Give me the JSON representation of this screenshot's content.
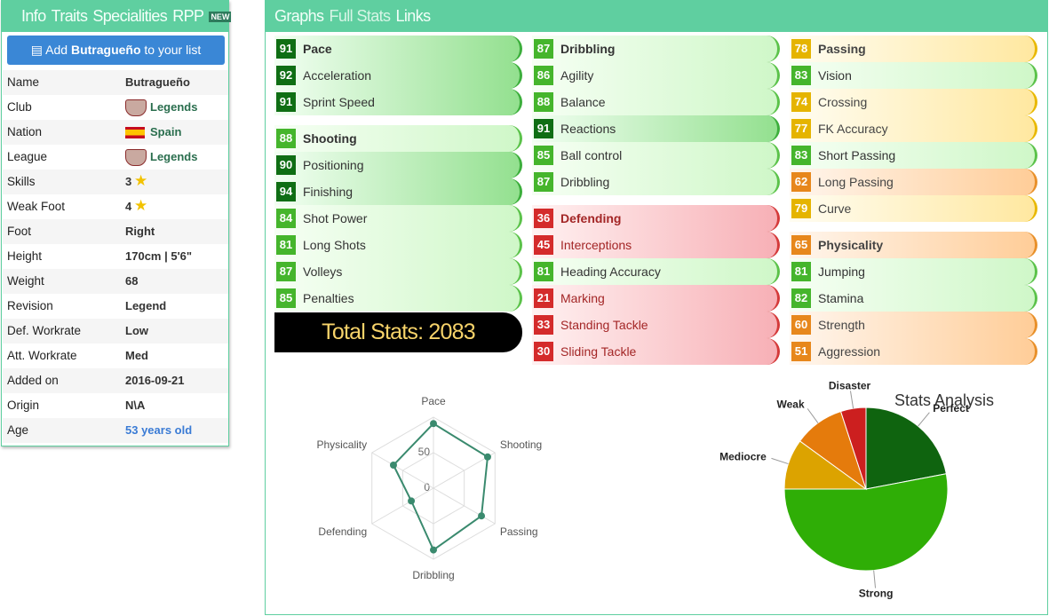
{
  "sidebar": {
    "tabs": [
      "Info",
      "Traits",
      "Specialities",
      "RPP"
    ],
    "badge": "NEW",
    "button": {
      "prefix": "Add ",
      "name": "Butragueño",
      "suffix": " to your list"
    },
    "rows": [
      [
        "Name",
        "Butragueño"
      ],
      [
        "Club",
        "Legends"
      ],
      [
        "Nation",
        "Spain"
      ],
      [
        "League",
        "Legends"
      ],
      [
        "Skills",
        "3"
      ],
      [
        "Weak Foot",
        "4"
      ],
      [
        "Foot",
        "Right"
      ],
      [
        "Height",
        "170cm | 5'6\""
      ],
      [
        "Weight",
        "68"
      ],
      [
        "Revision",
        "Legend"
      ],
      [
        "Def. Workrate",
        "Low"
      ],
      [
        "Att. Workrate",
        "Med"
      ],
      [
        "Added on",
        "2016-09-21"
      ],
      [
        "Origin",
        "N\\A"
      ],
      [
        "Age",
        "53 years old"
      ]
    ]
  },
  "main": {
    "tabs": [
      "Graphs",
      "Full Stats",
      "Links"
    ],
    "columns": [
      [
        {
          "name": "Pace",
          "rating": 91,
          "stats": [
            {
              "name": "Acceleration",
              "rating": 92
            },
            {
              "name": "Sprint Speed",
              "rating": 91
            }
          ]
        },
        {
          "name": "Shooting",
          "rating": 88,
          "stats": [
            {
              "name": "Positioning",
              "rating": 90
            },
            {
              "name": "Finishing",
              "rating": 94
            },
            {
              "name": "Shot Power",
              "rating": 84
            },
            {
              "name": "Long Shots",
              "rating": 81
            },
            {
              "name": "Volleys",
              "rating": 87
            },
            {
              "name": "Penalties",
              "rating": 85
            }
          ]
        }
      ],
      [
        {
          "name": "Dribbling",
          "rating": 87,
          "stats": [
            {
              "name": "Agility",
              "rating": 86
            },
            {
              "name": "Balance",
              "rating": 88
            },
            {
              "name": "Reactions",
              "rating": 91
            },
            {
              "name": "Ball control",
              "rating": 85
            },
            {
              "name": "Dribbling",
              "rating": 87
            }
          ]
        },
        {
          "name": "Defending",
          "rating": 36,
          "stats": [
            {
              "name": "Interceptions",
              "rating": 45
            },
            {
              "name": "Heading Accuracy",
              "rating": 81
            },
            {
              "name": "Marking",
              "rating": 21
            },
            {
              "name": "Standing Tackle",
              "rating": 33
            },
            {
              "name": "Sliding Tackle",
              "rating": 30
            }
          ]
        }
      ],
      [
        {
          "name": "Passing",
          "rating": 78,
          "stats": [
            {
              "name": "Vision",
              "rating": 83
            },
            {
              "name": "Crossing",
              "rating": 74
            },
            {
              "name": "FK Accuracy",
              "rating": 77
            },
            {
              "name": "Short Passing",
              "rating": 83
            },
            {
              "name": "Long Passing",
              "rating": 62
            },
            {
              "name": "Curve",
              "rating": 79
            }
          ]
        },
        {
          "name": "Physicality",
          "rating": 65,
          "stats": [
            {
              "name": "Jumping",
              "rating": 81
            },
            {
              "name": "Stamina",
              "rating": 82
            },
            {
              "name": "Strength",
              "rating": 60
            },
            {
              "name": "Aggression",
              "rating": 51
            }
          ]
        }
      ]
    ],
    "total": {
      "label": "Total Stats:",
      "value": 2083
    }
  },
  "chart_data": [
    {
      "type": "radar",
      "categories": [
        "Pace",
        "Shooting",
        "Passing",
        "Dribbling",
        "Defending",
        "Physicality"
      ],
      "values": [
        91,
        88,
        78,
        87,
        36,
        65
      ],
      "color": "#3a8a6e",
      "rlim": [
        0,
        100
      ],
      "rticks": [
        0,
        50
      ]
    },
    {
      "type": "pie",
      "title": "Stats Analysis",
      "categories": [
        "Perfect",
        "Strong",
        "Mediocre",
        "Weak",
        "Disaster"
      ],
      "values": [
        22,
        53,
        10,
        10,
        5
      ],
      "colors": [
        "#0f640f",
        "#2fae06",
        "#dca300",
        "#e57b0c",
        "#cc1f1f"
      ]
    }
  ]
}
